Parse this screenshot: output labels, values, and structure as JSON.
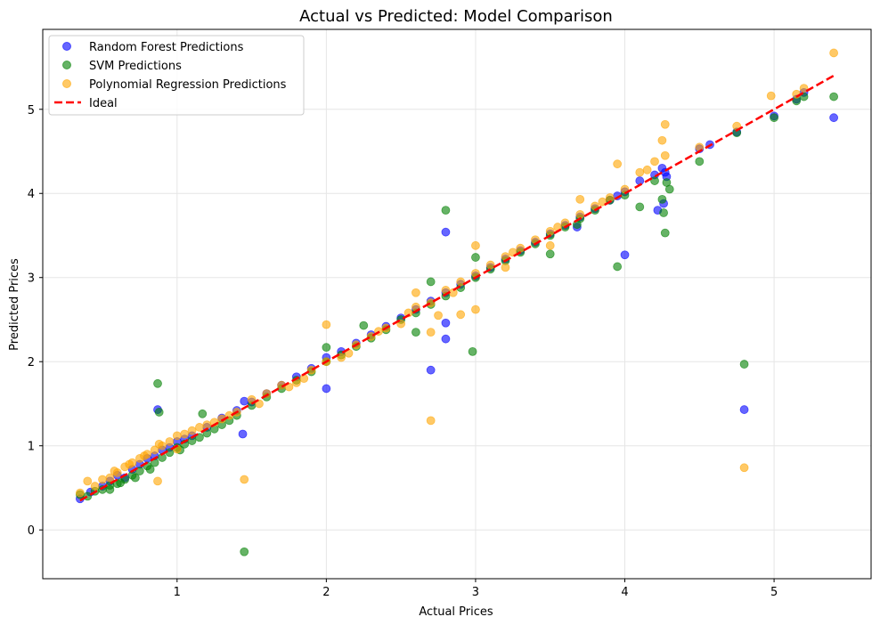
{
  "chart_data": {
    "type": "scatter",
    "title": "Actual vs Predicted: Model Comparison",
    "xlabel": "Actual Prices",
    "ylabel": "Predicted Prices",
    "xlim": [
      0.1,
      5.65
    ],
    "ylim": [
      -0.58,
      5.95
    ],
    "x_ticks": [
      1,
      2,
      3,
      4,
      5
    ],
    "y_ticks": [
      0,
      1,
      2,
      3,
      4,
      5
    ],
    "grid": true,
    "legend_position": "top-left",
    "series": [
      {
        "name": "Random Forest Predictions",
        "color": "#0000ff",
        "marker": "circle",
        "points": [
          [
            0.35,
            0.37
          ],
          [
            0.42,
            0.45
          ],
          [
            0.5,
            0.52
          ],
          [
            0.55,
            0.58
          ],
          [
            0.6,
            0.65
          ],
          [
            0.65,
            0.62
          ],
          [
            0.7,
            0.72
          ],
          [
            0.75,
            0.78
          ],
          [
            0.8,
            0.85
          ],
          [
            0.85,
            0.88
          ],
          [
            0.9,
            0.95
          ],
          [
            0.95,
            0.98
          ],
          [
            1.0,
            1.05
          ],
          [
            1.05,
            1.08
          ],
          [
            1.1,
            1.12
          ],
          [
            1.2,
            1.22
          ],
          [
            1.3,
            1.33
          ],
          [
            1.4,
            1.42
          ],
          [
            1.45,
            1.53
          ],
          [
            1.5,
            1.52
          ],
          [
            1.6,
            1.62
          ],
          [
            1.7,
            1.72
          ],
          [
            1.8,
            1.82
          ],
          [
            1.9,
            1.92
          ],
          [
            2.0,
            2.05
          ],
          [
            2.1,
            2.12
          ],
          [
            2.2,
            2.22
          ],
          [
            2.3,
            2.32
          ],
          [
            2.4,
            2.42
          ],
          [
            2.5,
            2.52
          ],
          [
            2.6,
            2.62
          ],
          [
            2.7,
            2.72
          ],
          [
            2.8,
            2.82
          ],
          [
            2.9,
            2.92
          ],
          [
            3.0,
            3.02
          ],
          [
            3.1,
            3.12
          ],
          [
            3.2,
            3.22
          ],
          [
            3.3,
            3.32
          ],
          [
            3.4,
            3.42
          ],
          [
            3.5,
            3.52
          ],
          [
            3.6,
            3.62
          ],
          [
            3.7,
            3.72
          ],
          [
            3.8,
            3.82
          ],
          [
            3.9,
            3.92
          ],
          [
            4.0,
            4.02
          ],
          [
            4.1,
            4.15
          ],
          [
            4.2,
            4.22
          ],
          [
            4.27,
            4.25
          ],
          [
            4.5,
            4.53
          ],
          [
            4.75,
            4.73
          ],
          [
            5.0,
            4.92
          ],
          [
            5.15,
            5.12
          ],
          [
            5.2,
            5.2
          ],
          [
            5.4,
            4.9
          ],
          [
            0.87,
            1.43
          ],
          [
            1.44,
            1.14
          ],
          [
            2.0,
            1.68
          ],
          [
            2.7,
            1.9
          ],
          [
            2.8,
            3.54
          ],
          [
            2.8,
            2.27
          ],
          [
            2.8,
            2.46
          ],
          [
            3.95,
            3.97
          ],
          [
            4.0,
            3.27
          ],
          [
            4.22,
            3.8
          ],
          [
            4.25,
            4.3
          ],
          [
            4.26,
            3.88
          ],
          [
            4.28,
            4.2
          ],
          [
            4.8,
            1.43
          ],
          [
            3.68,
            3.6
          ],
          [
            4.57,
            4.58
          ]
        ]
      },
      {
        "name": "SVM Predictions",
        "color": "#008000",
        "marker": "circle",
        "points": [
          [
            0.35,
            0.42
          ],
          [
            0.4,
            0.4
          ],
          [
            0.45,
            0.46
          ],
          [
            0.5,
            0.48
          ],
          [
            0.55,
            0.53
          ],
          [
            0.6,
            0.55
          ],
          [
            0.65,
            0.6
          ],
          [
            0.7,
            0.65
          ],
          [
            0.75,
            0.7
          ],
          [
            0.8,
            0.76
          ],
          [
            0.85,
            0.8
          ],
          [
            0.9,
            0.86
          ],
          [
            0.95,
            0.92
          ],
          [
            1.0,
            0.98
          ],
          [
            1.05,
            1.02
          ],
          [
            1.1,
            1.06
          ],
          [
            1.15,
            1.1
          ],
          [
            1.2,
            1.15
          ],
          [
            1.25,
            1.2
          ],
          [
            1.3,
            1.25
          ],
          [
            1.35,
            1.3
          ],
          [
            1.4,
            1.36
          ],
          [
            1.5,
            1.48
          ],
          [
            1.6,
            1.58
          ],
          [
            1.7,
            1.68
          ],
          [
            1.8,
            1.78
          ],
          [
            1.9,
            1.88
          ],
          [
            2.0,
            2.0
          ],
          [
            2.1,
            2.08
          ],
          [
            2.2,
            2.18
          ],
          [
            2.3,
            2.28
          ],
          [
            2.4,
            2.38
          ],
          [
            2.5,
            2.5
          ],
          [
            2.6,
            2.58
          ],
          [
            2.7,
            2.68
          ],
          [
            2.8,
            2.78
          ],
          [
            2.9,
            2.88
          ],
          [
            3.0,
            3.0
          ],
          [
            3.1,
            3.1
          ],
          [
            3.2,
            3.2
          ],
          [
            3.3,
            3.3
          ],
          [
            3.4,
            3.4
          ],
          [
            3.5,
            3.5
          ],
          [
            3.6,
            3.6
          ],
          [
            3.7,
            3.7
          ],
          [
            3.8,
            3.8
          ],
          [
            3.9,
            3.92
          ],
          [
            4.0,
            3.98
          ],
          [
            4.2,
            4.15
          ],
          [
            4.25,
            3.93
          ],
          [
            4.5,
            4.38
          ],
          [
            4.75,
            4.72
          ],
          [
            5.0,
            4.9
          ],
          [
            5.15,
            5.1
          ],
          [
            5.2,
            5.15
          ],
          [
            5.4,
            5.15
          ],
          [
            0.87,
            1.74
          ],
          [
            0.88,
            1.4
          ],
          [
            1.17,
            1.38
          ],
          [
            1.45,
            -0.26
          ],
          [
            2.0,
            2.17
          ],
          [
            2.25,
            2.43
          ],
          [
            2.6,
            2.35
          ],
          [
            2.7,
            2.95
          ],
          [
            2.8,
            3.8
          ],
          [
            2.98,
            2.12
          ],
          [
            3.0,
            3.24
          ],
          [
            3.5,
            3.28
          ],
          [
            3.95,
            3.13
          ],
          [
            4.1,
            3.84
          ],
          [
            4.26,
            3.77
          ],
          [
            4.27,
            3.53
          ],
          [
            4.28,
            4.13
          ],
          [
            4.3,
            4.05
          ],
          [
            4.8,
            1.97
          ],
          [
            3.68,
            3.63
          ],
          [
            0.55,
            0.48
          ],
          [
            0.62,
            0.56
          ],
          [
            0.72,
            0.62
          ],
          [
            0.82,
            0.72
          ],
          [
            1.02,
            0.95
          ]
        ]
      },
      {
        "name": "Polynomial Regression Predictions",
        "color": "#ffa500",
        "marker": "circle",
        "points": [
          [
            0.35,
            0.44
          ],
          [
            0.4,
            0.58
          ],
          [
            0.45,
            0.52
          ],
          [
            0.5,
            0.6
          ],
          [
            0.55,
            0.62
          ],
          [
            0.6,
            0.68
          ],
          [
            0.65,
            0.75
          ],
          [
            0.7,
            0.8
          ],
          [
            0.75,
            0.85
          ],
          [
            0.8,
            0.9
          ],
          [
            0.85,
            0.95
          ],
          [
            0.9,
            1.0
          ],
          [
            0.95,
            1.05
          ],
          [
            1.0,
            1.12
          ],
          [
            1.05,
            1.14
          ],
          [
            1.1,
            1.18
          ],
          [
            1.2,
            1.25
          ],
          [
            1.3,
            1.32
          ],
          [
            1.4,
            1.4
          ],
          [
            1.5,
            1.55
          ],
          [
            1.6,
            1.62
          ],
          [
            1.7,
            1.72
          ],
          [
            1.8,
            1.75
          ],
          [
            1.9,
            1.9
          ],
          [
            2.0,
            2.0
          ],
          [
            2.1,
            2.05
          ],
          [
            2.2,
            2.2
          ],
          [
            2.3,
            2.3
          ],
          [
            2.4,
            2.4
          ],
          [
            2.5,
            2.45
          ],
          [
            2.6,
            2.65
          ],
          [
            2.7,
            2.7
          ],
          [
            2.8,
            2.85
          ],
          [
            2.9,
            2.95
          ],
          [
            3.0,
            3.05
          ],
          [
            3.1,
            3.15
          ],
          [
            3.2,
            3.25
          ],
          [
            3.3,
            3.35
          ],
          [
            3.4,
            3.45
          ],
          [
            3.5,
            3.55
          ],
          [
            3.6,
            3.65
          ],
          [
            3.7,
            3.75
          ],
          [
            3.8,
            3.85
          ],
          [
            3.9,
            3.95
          ],
          [
            4.0,
            4.05
          ],
          [
            4.1,
            4.25
          ],
          [
            4.15,
            4.28
          ],
          [
            4.2,
            4.38
          ],
          [
            4.27,
            4.45
          ],
          [
            4.5,
            4.55
          ],
          [
            4.75,
            4.8
          ],
          [
            4.98,
            5.16
          ],
          [
            5.15,
            5.18
          ],
          [
            5.2,
            5.25
          ],
          [
            5.4,
            5.67
          ],
          [
            0.87,
            0.58
          ],
          [
            1.45,
            0.6
          ],
          [
            2.0,
            2.44
          ],
          [
            2.6,
            2.82
          ],
          [
            2.7,
            2.35
          ],
          [
            2.7,
            1.3
          ],
          [
            2.9,
            2.56
          ],
          [
            3.0,
            2.62
          ],
          [
            3.0,
            3.38
          ],
          [
            3.5,
            3.38
          ],
          [
            3.7,
            3.93
          ],
          [
            3.95,
            4.35
          ],
          [
            4.25,
            4.63
          ],
          [
            4.27,
            4.82
          ],
          [
            4.8,
            0.74
          ],
          [
            2.75,
            2.55
          ],
          [
            3.2,
            3.12
          ],
          [
            0.58,
            0.7
          ],
          [
            0.68,
            0.78
          ],
          [
            0.78,
            0.88
          ],
          [
            0.88,
            1.02
          ],
          [
            1.0,
            0.96
          ],
          [
            1.15,
            1.22
          ],
          [
            1.25,
            1.28
          ],
          [
            1.35,
            1.36
          ],
          [
            1.55,
            1.5
          ],
          [
            1.75,
            1.7
          ],
          [
            1.85,
            1.8
          ],
          [
            2.15,
            2.1
          ],
          [
            2.35,
            2.36
          ],
          [
            2.55,
            2.58
          ],
          [
            2.85,
            2.82
          ],
          [
            3.25,
            3.3
          ],
          [
            3.55,
            3.6
          ],
          [
            3.85,
            3.9
          ]
        ]
      }
    ],
    "ideal_line": {
      "name": "Ideal",
      "color": "#ff0000",
      "style": "dashed",
      "points": [
        [
          0.35,
          0.35
        ],
        [
          5.4,
          5.4
        ]
      ]
    }
  }
}
